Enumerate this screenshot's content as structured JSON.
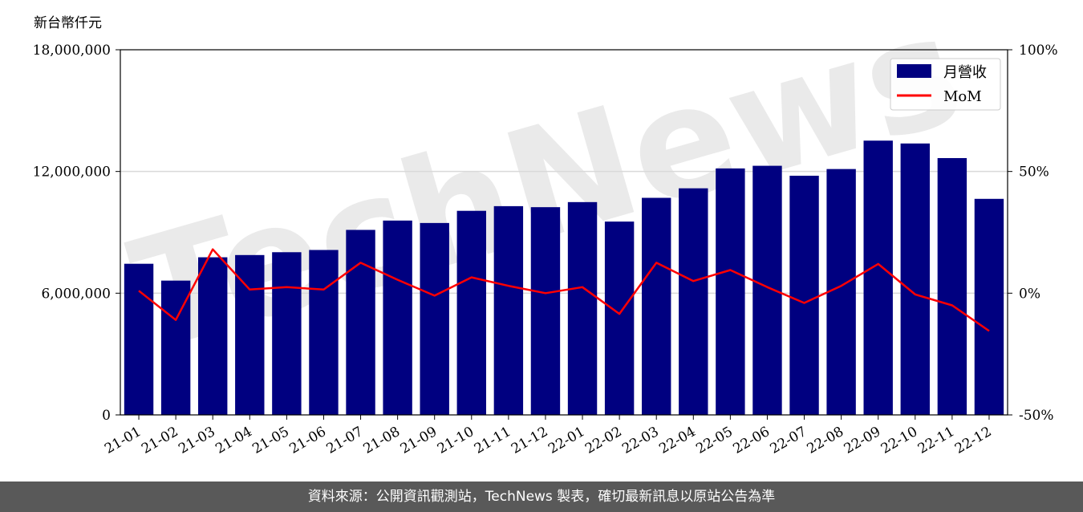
{
  "chart_data": {
    "type": "bar",
    "y_unit_label": "新台幣仟元",
    "categories": [
      "21-01",
      "21-02",
      "21-03",
      "21-04",
      "21-05",
      "21-06",
      "21-07",
      "21-08",
      "21-09",
      "21-10",
      "21-11",
      "21-12",
      "22-01",
      "22-02",
      "22-03",
      "22-04",
      "22-05",
      "22-06",
      "22-07",
      "22-08",
      "22-09",
      "22-10",
      "22-11",
      "22-12"
    ],
    "series": [
      {
        "name": "月營收",
        "type": "bar",
        "axis": "left",
        "color": "#000080",
        "values": [
          7450000,
          6620000,
          7770000,
          7880000,
          8020000,
          8130000,
          9120000,
          9580000,
          9460000,
          10060000,
          10290000,
          10240000,
          10490000,
          9530000,
          10700000,
          11170000,
          12150000,
          12280000,
          11790000,
          12120000,
          13520000,
          13380000,
          12660000,
          10650000
        ]
      },
      {
        "name": "MoM",
        "type": "line",
        "axis": "right",
        "color": "#ff0000",
        "values": [
          1,
          -11,
          18,
          1.5,
          2.5,
          1.5,
          12.5,
          5.5,
          -1,
          6.5,
          3,
          0,
          2.5,
          -8.5,
          12.5,
          5,
          9.5,
          2.5,
          -4,
          3,
          12,
          -0.5,
          -5,
          -15.5
        ]
      }
    ],
    "y_left": {
      "min": 0,
      "max": 18000000,
      "ticks": [
        0,
        6000000,
        12000000,
        18000000
      ],
      "tick_labels": [
        "0",
        "6,000,000",
        "12,000,000",
        "18,000,000"
      ]
    },
    "y_right": {
      "min": -50,
      "max": 100,
      "ticks": [
        -50,
        0,
        50,
        100
      ],
      "tick_labels": [
        "-50%",
        "0%",
        "50%",
        "100%"
      ]
    },
    "grid": "horizontal",
    "legend_position": "top-right"
  },
  "watermark": {
    "text": "TechNews"
  },
  "footer": {
    "text": "資料來源：公開資訊觀測站，TechNews 製表，確切最新訊息以原站公告為準"
  }
}
